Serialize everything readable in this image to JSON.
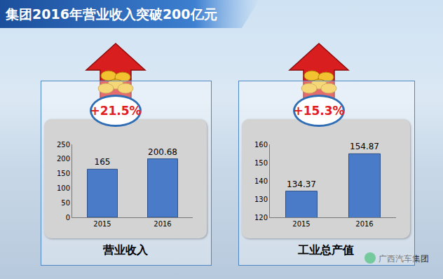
{
  "header": {
    "title": "集团2016年营业收入突破200亿元"
  },
  "watermark": "广西汽车集团",
  "chart_data": [
    {
      "type": "bar",
      "title": "营业收入",
      "annotation": "+21.5%",
      "categories": [
        "2015",
        "2016"
      ],
      "values": [
        165,
        200.68
      ],
      "color": "#4a7bc8",
      "ylim": [
        0,
        250
      ],
      "yticks": [
        0,
        50,
        100,
        150,
        200,
        250
      ],
      "grid": false,
      "data_labels": true
    },
    {
      "type": "bar",
      "title": "工业总产值",
      "annotation": "+15.3%",
      "categories": [
        "2015",
        "2016"
      ],
      "values": [
        134.37,
        154.87
      ],
      "color": "#4a7bc8",
      "ylim": [
        120,
        160
      ],
      "yticks": [
        120,
        130,
        140,
        150,
        160
      ],
      "grid": false,
      "data_labels": true
    }
  ]
}
